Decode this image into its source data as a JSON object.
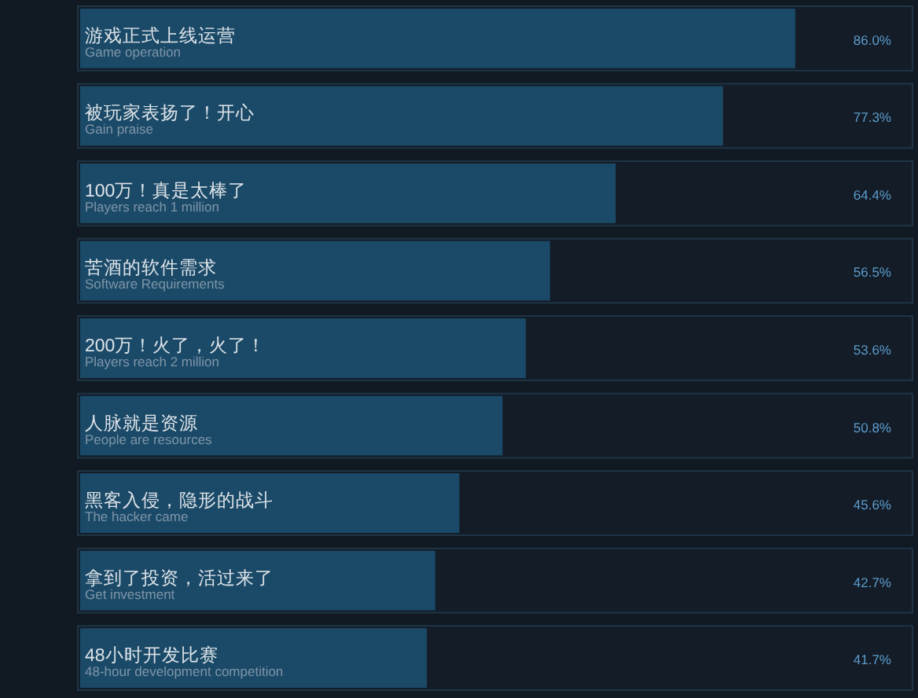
{
  "chart_data": {
    "type": "bar",
    "orientation": "horizontal",
    "categories": [
      "游戏正式上线运营\nGame operation",
      "被玩家表扬了！开心\nGain praise",
      "100万！真是太棒了\nPlayers reach 1 million",
      "苦酒的软件需求\nSoftware Requirements",
      "200万！火了，火了！\nPlayers reach 2 million",
      "人脉就是资源\nPeople are resources",
      "黑客入侵，隐形的战斗\nThe hacker came",
      "拿到了投资，活过来了\nGet investment",
      "48小时开发比赛\n48-hour development competition"
    ],
    "values": [
      86,
      77.3,
      64.4,
      56.5,
      53.6,
      50.8,
      45.6,
      42.7,
      41.7
    ],
    "value_labels": [
      "86.0%",
      "77.3%",
      "64.4%",
      "56.5%",
      "53.6%",
      "50.8%",
      "45.6%",
      "42.7%",
      "41.7%"
    ],
    "color": "#1b4a68",
    "xlim": [
      0,
      100
    ]
  }
}
